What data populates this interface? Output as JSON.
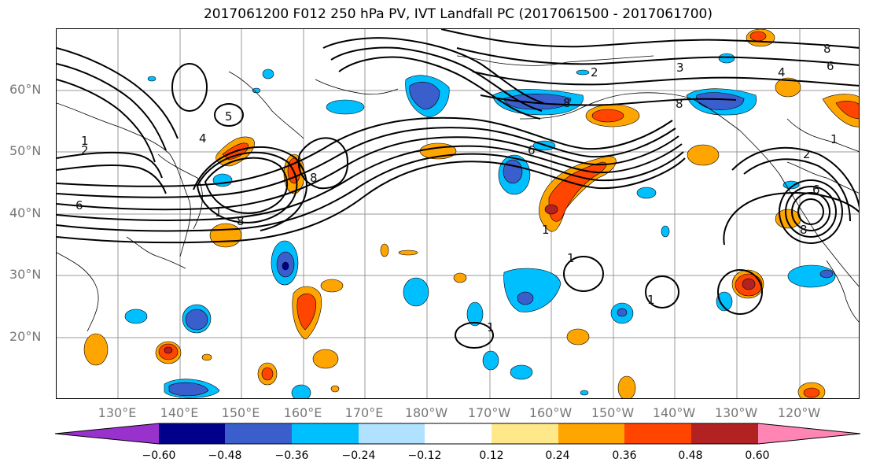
{
  "title": "2017061200 F012 250 hPa PV, IVT Landfall PC (2017061500 - 2017061700)",
  "lat_labels": [
    "60°N",
    "50°N",
    "40°N",
    "30°N",
    "20°N"
  ],
  "lon_labels": [
    "130°E",
    "140°E",
    "150°E",
    "160°E",
    "170°E",
    "180°W",
    "170°W",
    "160°W",
    "150°W",
    "140°W",
    "130°W",
    "120°W"
  ],
  "colorbar": {
    "tick_labels": [
      "−0.60",
      "−0.48",
      "−0.36",
      "−0.24",
      "−0.12",
      "0.12",
      "0.24",
      "0.36",
      "0.48",
      "0.60"
    ],
    "colors": [
      "#9932cc",
      "#00008b",
      "#3a5fcd",
      "#00bfff",
      "#b0e2ff",
      "#ffffff",
      "#ffe88a",
      "#ffa500",
      "#ff4500",
      "#b22222",
      "#ff85b4"
    ]
  },
  "contour_labels": [
    "1",
    "2",
    "5",
    "4",
    "8",
    "1",
    "2",
    "8",
    "6",
    "8",
    "3",
    "8",
    "4",
    "6",
    "1",
    "6",
    "8",
    "2",
    "6",
    "8",
    "1",
    "1",
    "1",
    "1"
  ]
}
